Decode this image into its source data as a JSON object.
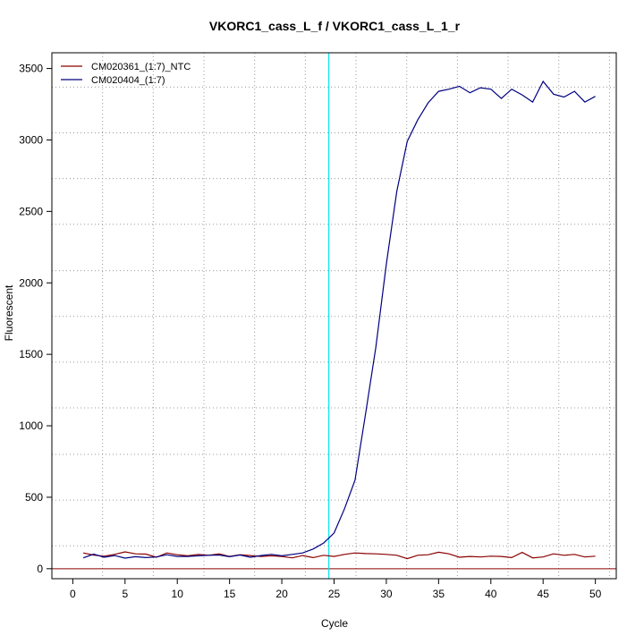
{
  "chart_data": {
    "type": "line",
    "title": "VKORC1_cass_L_f / VKORC1_cass_L_1_r",
    "xlabel": "Cycle",
    "ylabel": "Fluorescent",
    "xlim": [
      -2,
      52
    ],
    "ylim": [
      -70,
      3610
    ],
    "x_ticks": [
      0,
      5,
      10,
      15,
      20,
      25,
      30,
      35,
      40,
      45,
      50
    ],
    "y_ticks": [
      0,
      500,
      1000,
      1500,
      2000,
      2500,
      3000,
      3500
    ],
    "grid": true,
    "legend_position": "top-left",
    "threshold_cycle": 24.5,
    "threshold_color": "#00e5ee",
    "baseline_color": "#8b0000",
    "series": [
      {
        "name": "CM020361_(1:7)_NTC",
        "color": "#8b0000",
        "x": [
          1,
          2,
          3,
          4,
          5,
          6,
          7,
          8,
          9,
          10,
          11,
          12,
          13,
          14,
          15,
          16,
          17,
          18,
          19,
          20,
          21,
          22,
          23,
          24,
          25,
          26,
          27,
          28,
          29,
          30,
          31,
          32,
          33,
          34,
          35,
          36,
          37,
          38,
          39,
          40,
          41,
          42,
          43,
          44,
          45,
          46,
          47,
          48,
          49,
          50
        ],
        "values": [
          110,
          95,
          88,
          100,
          118,
          104,
          102,
          80,
          110,
          98,
          90,
          100,
          94,
          104,
          86,
          98,
          92,
          86,
          90,
          86,
          76,
          92,
          78,
          94,
          86,
          100,
          110,
          106,
          104,
          100,
          94,
          70,
          94,
          98,
          115,
          104,
          80,
          86,
          82,
          88,
          86,
          78,
          114,
          76,
          82,
          104,
          94,
          100,
          82,
          88
        ]
      },
      {
        "name": "CM020404_(1:7)",
        "color": "#000080",
        "x": [
          1,
          2,
          3,
          4,
          5,
          6,
          7,
          8,
          9,
          10,
          11,
          12,
          13,
          14,
          15,
          16,
          17,
          18,
          19,
          20,
          21,
          22,
          23,
          24,
          25,
          26,
          27,
          28,
          29,
          30,
          31,
          32,
          33,
          34,
          35,
          36,
          37,
          38,
          39,
          40,
          41,
          42,
          43,
          44,
          45,
          46,
          47,
          48,
          49,
          50
        ],
        "values": [
          76,
          102,
          80,
          92,
          74,
          84,
          78,
          82,
          98,
          86,
          86,
          90,
          94,
          96,
          84,
          96,
          80,
          92,
          100,
          90,
          100,
          110,
          138,
          180,
          250,
          420,
          620,
          1080,
          1550,
          2130,
          2640,
          2990,
          3140,
          3260,
          3340,
          3355,
          3375,
          3330,
          3365,
          3355,
          3290,
          3355,
          3315,
          3265,
          3410,
          3320,
          3300,
          3340,
          3265,
          3305
        ]
      }
    ]
  }
}
